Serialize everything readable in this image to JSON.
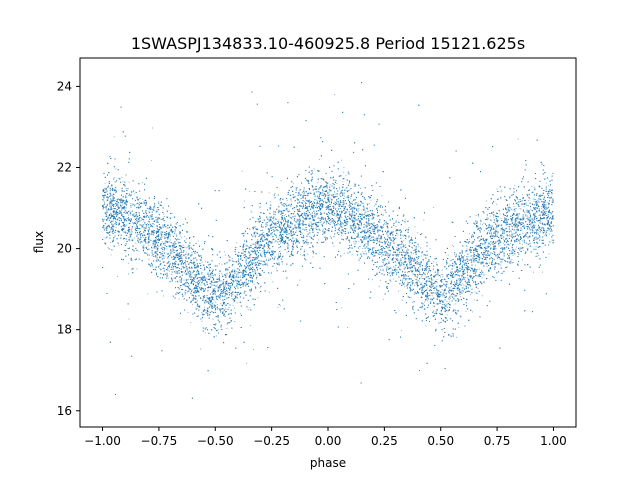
{
  "chart_data": {
    "type": "scatter",
    "title": "1SWASPJ134833.10-460925.8 Period 15121.625s",
    "xlabel": "phase",
    "ylabel": "flux",
    "xlim": [
      -1.1,
      1.1
    ],
    "ylim": [
      15.6,
      24.7
    ],
    "xticks": [
      -1.0,
      -0.75,
      -0.5,
      -0.25,
      0.0,
      0.25,
      0.5,
      0.75,
      1.0
    ],
    "xtick_labels": [
      "−1.00",
      "−0.75",
      "−0.50",
      "−0.25",
      "0.00",
      "0.25",
      "0.50",
      "0.75",
      "1.00"
    ],
    "yticks": [
      16,
      18,
      20,
      22,
      24
    ],
    "ytick_labels": [
      "16",
      "18",
      "20",
      "22",
      "24"
    ],
    "grid": false,
    "marker_color": "#1f77b4",
    "series": [
      {
        "phase": [
          -1.0,
          -0.95,
          -0.9,
          -0.85,
          -0.8,
          -0.75,
          -0.7,
          -0.65,
          -0.6,
          -0.55,
          -0.5,
          -0.45,
          -0.4,
          -0.35,
          -0.3,
          -0.25,
          -0.2,
          -0.15,
          -0.1,
          -0.05,
          0.0,
          0.05,
          0.1,
          0.15,
          0.2,
          0.25,
          0.3,
          0.35,
          0.4,
          0.45,
          0.5,
          0.55,
          0.6,
          0.65,
          0.7,
          0.75,
          0.8,
          0.85,
          0.9,
          0.95,
          1.0
        ],
        "flux_trend": [
          20.9,
          20.95,
          20.85,
          20.65,
          20.45,
          20.25,
          20.0,
          19.7,
          19.35,
          19.0,
          18.75,
          18.95,
          19.3,
          19.7,
          20.0,
          20.25,
          20.45,
          20.65,
          20.85,
          20.95,
          20.95,
          20.9,
          20.75,
          20.55,
          20.35,
          20.15,
          19.95,
          19.7,
          19.4,
          19.05,
          18.8,
          18.95,
          19.3,
          19.7,
          20.0,
          20.25,
          20.45,
          20.6,
          20.75,
          20.85,
          20.95
        ],
        "scatter_width": 0.45,
        "point_count": 20000
      }
    ]
  }
}
